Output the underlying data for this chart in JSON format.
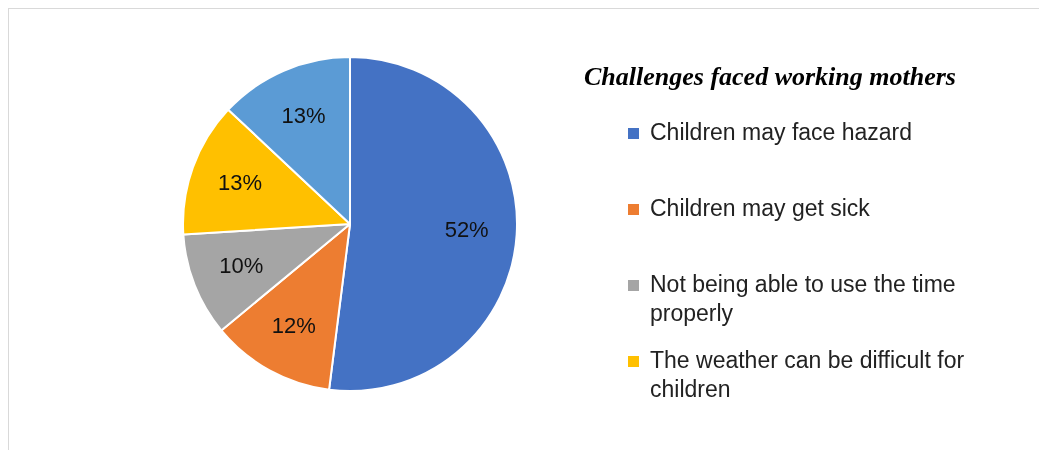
{
  "chart_data": {
    "type": "pie",
    "title": "Challenges faced working mothers",
    "categories": [
      "Children may face hazard",
      "Children may get sick",
      "Not being able to use the time properly",
      "The weather can be difficult for children",
      null
    ],
    "values": [
      52,
      12,
      10,
      13,
      13
    ],
    "colors": [
      "#4472c4",
      "#ed7d31",
      "#a5a5a5",
      "#ffc000",
      "#5b9bd5"
    ],
    "value_labels": [
      "52%",
      "12%",
      "10%",
      "13%",
      "13%"
    ],
    "legend": "right"
  }
}
